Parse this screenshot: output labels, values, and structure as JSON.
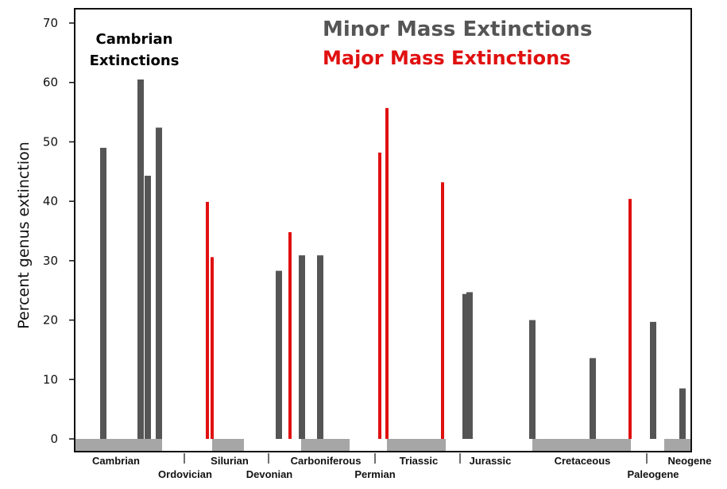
{
  "chart_data": {
    "type": "bar",
    "title": "",
    "xlabel": "",
    "ylabel": "Percent genus extinction",
    "ylim": [
      0,
      70
    ],
    "yticks": [
      0,
      10,
      20,
      30,
      40,
      50,
      60,
      70
    ],
    "grid": false,
    "legend_position": "top-right",
    "annotation": {
      "line1": "Cambrian",
      "line2": "Extinctions"
    },
    "legend": [
      {
        "key": "minor",
        "label": "Minor Mass Extinctions",
        "color": "#555555"
      },
      {
        "key": "major",
        "label": "Major Mass Extinctions",
        "color": "#e01010"
      }
    ],
    "periods": [
      {
        "name": "Cambrian",
        "shaded": true
      },
      {
        "name": "Ordovician",
        "shaded": false
      },
      {
        "name": "Silurian",
        "shaded": true
      },
      {
        "name": "Devonian",
        "shaded": false
      },
      {
        "name": "Carboniferous",
        "shaded": true
      },
      {
        "name": "Permian",
        "shaded": false
      },
      {
        "name": "Triassic",
        "shaded": true
      },
      {
        "name": "Jurassic",
        "shaded": false
      },
      {
        "name": "Cretaceous",
        "shaded": true
      },
      {
        "name": "Paleogene",
        "shaded": false
      },
      {
        "name": "Neogene",
        "shaded": true
      }
    ],
    "series": [
      {
        "name": "Minor Mass Extinctions",
        "color": "#555555",
        "values": [
          49,
          60.5,
          44.3,
          52.4,
          28.3,
          30.9,
          30.9,
          24.4,
          24.7,
          20,
          13.6,
          19.7,
          8.5
        ]
      },
      {
        "name": "Major Mass Extinctions",
        "color": "#e01010",
        "values": [
          39.9,
          30.6,
          34.8,
          48.2,
          55.7,
          43.2,
          40.4
        ]
      }
    ]
  }
}
